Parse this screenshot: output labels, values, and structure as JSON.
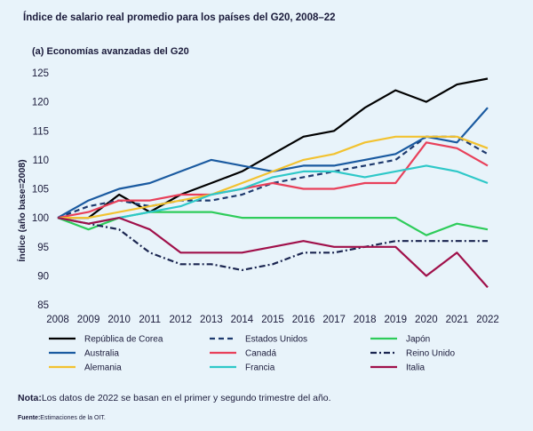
{
  "header": {
    "title": "Índice de salario real promedio para los países del G20, 2008–22",
    "subtitle": "(a) Economías avanzadas del G20"
  },
  "footer": {
    "note_label": "Nota:",
    "note_text": "Los datos de 2022 se basan en el primer y segundo trimestre del año.",
    "source_label": "Fuente:",
    "source_text": "Estimaciones de la OIT."
  },
  "chart_data": {
    "type": "line",
    "title": "(a) Economías avanzadas del G20",
    "xlabel": "",
    "ylabel": "Índice (año base=2008)",
    "x": [
      2008,
      2009,
      2010,
      2011,
      2012,
      2013,
      2014,
      2015,
      2016,
      2017,
      2018,
      2019,
      2020,
      2021,
      2022
    ],
    "ylim": [
      85,
      125
    ],
    "yticks": [
      85,
      90,
      95,
      100,
      105,
      110,
      115,
      120,
      125
    ],
    "grid": false,
    "legend_position": "bottom",
    "series": [
      {
        "name": "República de Corea",
        "color": "#000000",
        "dash": "solid",
        "values": [
          100,
          100,
          104,
          101,
          104,
          106,
          108,
          111,
          114,
          115,
          119,
          122,
          120,
          123,
          124
        ]
      },
      {
        "name": "Estados Unidos",
        "color": "#1e3a6e",
        "dash": "dashed",
        "values": [
          100,
          102,
          103,
          102,
          103,
          103,
          104,
          106,
          107,
          108,
          109,
          110,
          114,
          114,
          111
        ]
      },
      {
        "name": "Japón",
        "color": "#2ecc5a",
        "dash": "solid",
        "values": [
          100,
          98,
          100,
          101,
          101,
          101,
          100,
          100,
          100,
          100,
          100,
          100,
          97,
          99,
          98
        ]
      },
      {
        "name": "Australia",
        "color": "#1a5aa0",
        "dash": "solid",
        "values": [
          100,
          103,
          105,
          106,
          108,
          110,
          109,
          108,
          109,
          109,
          110,
          111,
          114,
          113,
          119
        ]
      },
      {
        "name": "Canadá",
        "color": "#e8405a",
        "dash": "solid",
        "values": [
          100,
          101,
          103,
          103,
          104,
          104,
          105,
          106,
          105,
          105,
          106,
          106,
          113,
          112,
          109
        ]
      },
      {
        "name": "Reino Unido",
        "color": "#1a2550",
        "dash": "dashdot",
        "values": [
          100,
          99,
          98,
          94,
          92,
          92,
          91,
          92,
          94,
          94,
          95,
          96,
          96,
          96,
          96
        ]
      },
      {
        "name": "Alemania",
        "color": "#f2c230",
        "dash": "solid",
        "values": [
          100,
          100,
          101,
          102,
          103,
          104,
          106,
          108,
          110,
          111,
          113,
          114,
          114,
          114,
          112
        ]
      },
      {
        "name": "Francia",
        "color": "#2ec8c8",
        "dash": "solid",
        "values": [
          100,
          99,
          100,
          101,
          102,
          104,
          105,
          107,
          108,
          108,
          107,
          108,
          109,
          108,
          106
        ]
      },
      {
        "name": "Italia",
        "color": "#a0104a",
        "dash": "solid",
        "values": [
          100,
          99,
          100,
          98,
          94,
          94,
          94,
          95,
          96,
          95,
          95,
          95,
          90,
          94,
          88
        ]
      }
    ]
  }
}
